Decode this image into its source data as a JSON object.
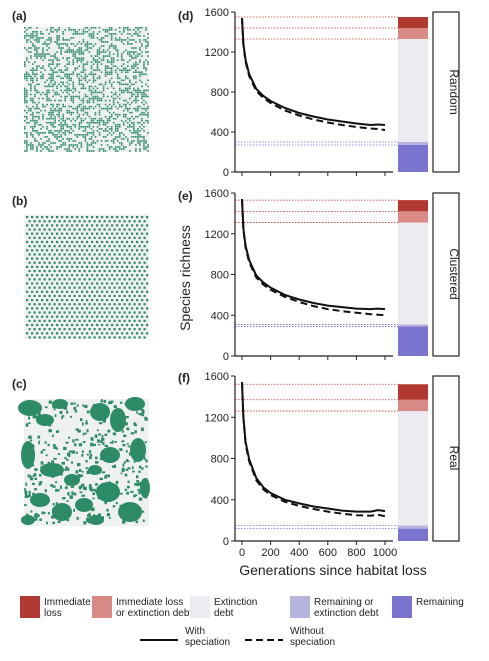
{
  "map_panels": [
    {
      "label": "(a)",
      "pattern": "random"
    },
    {
      "label": "(b)",
      "pattern": "clustered"
    },
    {
      "label": "(c)",
      "pattern": "real"
    }
  ],
  "map_color": "#2e8b67",
  "map_background": "#eef1ef",
  "chart_data": {
    "type": "line",
    "xlabel": "Generations since habitat loss",
    "ylabel": "Species richness",
    "xlim": [
      0,
      1000
    ],
    "ylim": [
      0,
      1600
    ],
    "xticks": [
      0,
      200,
      400,
      600,
      800,
      1000
    ],
    "yticks": [
      0,
      400,
      800,
      1200,
      1600
    ],
    "x": [
      0,
      10,
      25,
      50,
      100,
      150,
      200,
      300,
      400,
      500,
      600,
      700,
      800,
      900,
      950,
      1000
    ],
    "panels": [
      {
        "label": "(d)",
        "strip": "Random",
        "series": [
          {
            "name": "With speciation",
            "style": "solid",
            "values": [
              1540,
              1280,
              1120,
              980,
              830,
              760,
              710,
              640,
              590,
              555,
              525,
              505,
              485,
              470,
              475,
              470
            ]
          },
          {
            "name": "Without speciation",
            "style": "dashed",
            "values": [
              1540,
              1270,
              1100,
              960,
              810,
              740,
              690,
              615,
              565,
              525,
              495,
              470,
              450,
              435,
              430,
              420
            ]
          }
        ],
        "stacked_bar": {
          "remaining": 270,
          "remaining_or_debt": 300,
          "extinction_debt": 1330,
          "immediate_or_debt": 1440,
          "total": 1550
        }
      },
      {
        "label": "(e)",
        "strip": "Clustered",
        "series": [
          {
            "name": "With speciation",
            "style": "solid",
            "values": [
              1540,
              1250,
              1080,
              940,
              790,
              720,
              670,
              600,
              555,
              520,
              495,
              480,
              465,
              460,
              465,
              460
            ]
          },
          {
            "name": "Without speciation",
            "style": "dashed",
            "values": [
              1540,
              1240,
              1060,
              920,
              770,
              700,
              650,
              580,
              530,
              490,
              460,
              440,
              425,
              410,
              405,
              400
            ]
          }
        ],
        "stacked_bar": {
          "remaining": 290,
          "remaining_or_debt": 310,
          "extinction_debt": 1310,
          "immediate_or_debt": 1420,
          "total": 1530
        }
      },
      {
        "label": "(f)",
        "strip": "Real",
        "series": [
          {
            "name": "With speciation",
            "style": "solid",
            "values": [
              1540,
              1200,
              960,
              790,
              610,
              520,
              465,
              400,
              365,
              335,
              315,
              295,
              285,
              285,
              300,
              290
            ]
          },
          {
            "name": "Without speciation",
            "style": "dashed",
            "values": [
              1540,
              1190,
              940,
              770,
              590,
              500,
              445,
              380,
              340,
              310,
              285,
              265,
              250,
              245,
              255,
              240
            ]
          }
        ],
        "stacked_bar": {
          "remaining": 120,
          "remaining_or_debt": 150,
          "extinction_debt": 1260,
          "immediate_or_debt": 1370,
          "total": 1520
        }
      }
    ],
    "bar_colors": {
      "immediate_loss": "#b03a32",
      "immediate_or_debt": "#d98a86",
      "extinction_debt": "#ecebf1",
      "remaining_or_debt": "#b7b3df",
      "remaining": "#7b74cf"
    },
    "ref_line_colors": {
      "upper": "#c0392b",
      "lower": "#6f6ad0"
    },
    "legend": {
      "fills": [
        {
          "key": "immediate_loss",
          "label_lines": [
            "Immediate",
            "loss"
          ]
        },
        {
          "key": "immediate_or_debt",
          "label_lines": [
            "Immediate loss",
            "or extinction debt"
          ]
        },
        {
          "key": "extinction_debt",
          "label_lines": [
            "Extinction",
            "debt"
          ]
        },
        {
          "key": "remaining_or_debt",
          "label_lines": [
            "Remaining or",
            "extinction debt"
          ]
        },
        {
          "key": "remaining",
          "label_lines": [
            "Remaining"
          ]
        }
      ],
      "lines": [
        {
          "style": "solid",
          "label_lines": [
            "With",
            "speciation"
          ]
        },
        {
          "style": "dashed",
          "label_lines": [
            "Without",
            "speciation"
          ]
        }
      ]
    }
  }
}
